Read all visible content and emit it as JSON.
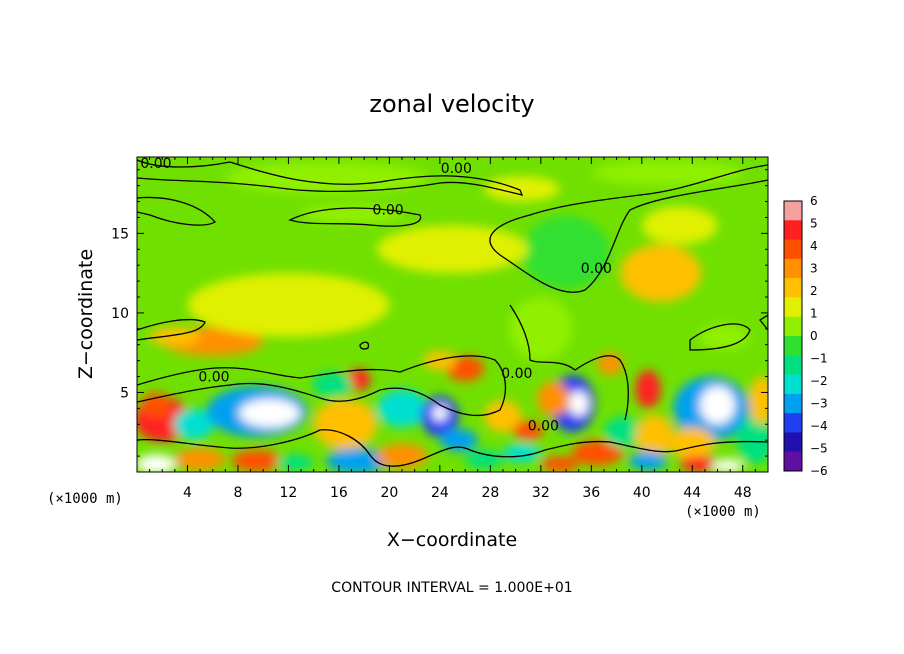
{
  "chart_data": {
    "type": "heatmap",
    "title": "zonal velocity",
    "xlabel": "X−coordinate",
    "ylabel": "Z−coordinate",
    "x_unit_left": "(×1000 m)",
    "x_unit_right": "(×1000 m)",
    "xlim": [
      0,
      50
    ],
    "ylim": [
      0,
      19.8
    ],
    "x_ticks": [
      4,
      8,
      12,
      16,
      20,
      24,
      28,
      32,
      36,
      40,
      44,
      48
    ],
    "y_ticks": [
      5,
      10,
      15
    ],
    "colorbar": {
      "min": -6,
      "max": 6,
      "labels": [
        "6",
        "5",
        "4",
        "3",
        "2",
        "1",
        "0",
        "−1",
        "−2",
        "−3",
        "−4",
        "−5",
        "−6"
      ],
      "colors": [
        "#f4a0a0",
        "#ff2020",
        "#ff5000",
        "#ff9000",
        "#ffc000",
        "#e0f000",
        "#90f000",
        "#30e030",
        "#00e080",
        "#00e0d0",
        "#00a0f0",
        "#2040f0",
        "#2010b0",
        "#6010a0"
      ]
    },
    "contour_labels": [
      {
        "text": "0.00",
        "x": 1.5,
        "y": 19.1
      },
      {
        "text": "0.00",
        "x": 25.3,
        "y": 18.8
      },
      {
        "text": "0.00",
        "x": 19.9,
        "y": 16.2
      },
      {
        "text": "0.00",
        "x": 36.4,
        "y": 12.5
      },
      {
        "text": "0.00",
        "x": 6.1,
        "y": 5.7
      },
      {
        "text": "0.00",
        "x": 30.1,
        "y": 5.9
      },
      {
        "text": "0.00",
        "x": 32.2,
        "y": 2.6
      }
    ],
    "blobs": [
      {
        "x": 2.0,
        "y": 3.3,
        "rx": 2.2,
        "ry": 1.4,
        "v": 4.5
      },
      {
        "x": 1.5,
        "y": 4.2,
        "rx": 1.2,
        "ry": 0.8,
        "v": 3.5
      },
      {
        "x": 4.5,
        "y": 3.0,
        "rx": 1.6,
        "ry": 1.0,
        "v": -3.2
      },
      {
        "x": 1.5,
        "y": 0.5,
        "rx": 1.6,
        "ry": 0.6,
        "v": -6.5
      },
      {
        "x": 5.0,
        "y": 0.8,
        "rx": 2.0,
        "ry": 0.7,
        "v": 2.2
      },
      {
        "x": 9.5,
        "y": 3.8,
        "rx": 4.0,
        "ry": 1.6,
        "v": -4.2
      },
      {
        "x": 10.5,
        "y": 3.7,
        "rx": 2.4,
        "ry": 0.9,
        "v": -6.5
      },
      {
        "x": 9.5,
        "y": 0.7,
        "rx": 2.0,
        "ry": 0.7,
        "v": 3.8
      },
      {
        "x": 12.5,
        "y": 0.6,
        "rx": 1.5,
        "ry": 0.5,
        "v": -2.5
      },
      {
        "x": 6.0,
        "y": 8.2,
        "rx": 4.0,
        "ry": 0.9,
        "v": 3.0
      },
      {
        "x": 8.5,
        "y": 9.2,
        "rx": 1.5,
        "ry": 0.5,
        "v": 2.2
      },
      {
        "x": 3.0,
        "y": 8.5,
        "rx": 2.0,
        "ry": 0.6,
        "v": 1.5
      },
      {
        "x": 16.5,
        "y": 3.0,
        "rx": 2.5,
        "ry": 1.6,
        "v": 1.8
      },
      {
        "x": 17.5,
        "y": 5.8,
        "rx": 1.0,
        "ry": 0.7,
        "v": 4.3
      },
      {
        "x": 15.5,
        "y": 5.5,
        "rx": 1.6,
        "ry": 0.8,
        "v": -2.5
      },
      {
        "x": 17.5,
        "y": 0.7,
        "rx": 2.5,
        "ry": 0.8,
        "v": -4.0
      },
      {
        "x": 21.0,
        "y": 4.0,
        "rx": 2.0,
        "ry": 1.2,
        "v": -3.8
      },
      {
        "x": 24.0,
        "y": 3.5,
        "rx": 1.5,
        "ry": 1.3,
        "v": -5.0
      },
      {
        "x": 24.0,
        "y": 3.7,
        "rx": 0.6,
        "ry": 0.5,
        "v": -6.5
      },
      {
        "x": 25.5,
        "y": 2.0,
        "rx": 1.5,
        "ry": 0.7,
        "v": -4.5
      },
      {
        "x": 26.0,
        "y": 6.5,
        "rx": 1.5,
        "ry": 0.8,
        "v": 3.5
      },
      {
        "x": 24.0,
        "y": 7.0,
        "rx": 1.3,
        "ry": 0.6,
        "v": 1.8
      },
      {
        "x": 21.0,
        "y": 1.0,
        "rx": 2.0,
        "ry": 0.8,
        "v": 2.2
      },
      {
        "x": 27.5,
        "y": 0.8,
        "rx": 1.5,
        "ry": 0.6,
        "v": -2.5
      },
      {
        "x": 29.0,
        "y": 3.5,
        "rx": 1.5,
        "ry": 1.0,
        "v": 1.5
      },
      {
        "x": 31.0,
        "y": 2.6,
        "rx": 1.2,
        "ry": 0.6,
        "v": 3.6
      },
      {
        "x": 30.5,
        "y": 1.2,
        "rx": 1.5,
        "ry": 0.6,
        "v": -3.0
      },
      {
        "x": 33.5,
        "y": 0.5,
        "rx": 1.5,
        "ry": 0.5,
        "v": 3.5
      },
      {
        "x": 34.5,
        "y": 4.3,
        "rx": 1.8,
        "ry": 1.8,
        "v": -5.0
      },
      {
        "x": 35.0,
        "y": 4.3,
        "rx": 0.8,
        "ry": 0.8,
        "v": -6.5
      },
      {
        "x": 33.0,
        "y": 4.6,
        "rx": 1.3,
        "ry": 1.1,
        "v": 2.2
      },
      {
        "x": 36.5,
        "y": 1.2,
        "rx": 2.0,
        "ry": 0.8,
        "v": 3.6
      },
      {
        "x": 37.5,
        "y": 6.8,
        "rx": 1.0,
        "ry": 0.7,
        "v": 2.5
      },
      {
        "x": 40.5,
        "y": 5.2,
        "rx": 1.0,
        "ry": 1.2,
        "v": 4.3
      },
      {
        "x": 38.5,
        "y": 2.5,
        "rx": 1.5,
        "ry": 1.0,
        "v": -2.0
      },
      {
        "x": 41.0,
        "y": 2.3,
        "rx": 1.5,
        "ry": 1.3,
        "v": 1.2
      },
      {
        "x": 40.5,
        "y": 0.7,
        "rx": 1.5,
        "ry": 0.6,
        "v": -4.0
      },
      {
        "x": 45.5,
        "y": 4.0,
        "rx": 3.0,
        "ry": 2.0,
        "v": -4.3
      },
      {
        "x": 46.0,
        "y": 4.2,
        "rx": 1.4,
        "ry": 1.2,
        "v": -6.5
      },
      {
        "x": 44.0,
        "y": 1.8,
        "rx": 1.8,
        "ry": 1.0,
        "v": 2.0
      },
      {
        "x": 44.5,
        "y": 0.5,
        "rx": 1.5,
        "ry": 0.5,
        "v": 4.5
      },
      {
        "x": 46.8,
        "y": 0.4,
        "rx": 1.3,
        "ry": 0.4,
        "v": -6.5
      },
      {
        "x": 49.0,
        "y": 2.0,
        "rx": 1.5,
        "ry": 1.5,
        "v": -2.5
      },
      {
        "x": 49.5,
        "y": 4.5,
        "rx": 1.0,
        "ry": 1.5,
        "v": 1.8
      },
      {
        "x": 46.5,
        "y": 8.5,
        "rx": 2.0,
        "ry": 0.8,
        "v": -0.8
      },
      {
        "x": 34.0,
        "y": 13.8,
        "rx": 3.5,
        "ry": 2.3,
        "v": -1.5
      },
      {
        "x": 41.5,
        "y": 12.5,
        "rx": 3.2,
        "ry": 1.8,
        "v": 1.5
      },
      {
        "x": 43.0,
        "y": 15.5,
        "rx": 3.0,
        "ry": 1.2,
        "v": 0.8
      },
      {
        "x": 30.5,
        "y": 17.8,
        "rx": 3.0,
        "ry": 0.8,
        "v": 0.6
      },
      {
        "x": 12.0,
        "y": 10.5,
        "rx": 8.0,
        "ry": 2.0,
        "v": 0.8
      },
      {
        "x": 32.0,
        "y": 9.0,
        "rx": 2.5,
        "ry": 2.0,
        "v": -0.6
      },
      {
        "x": 15.0,
        "y": 18.5,
        "rx": 8.0,
        "ry": 1.0,
        "v": -0.6
      },
      {
        "x": 42.0,
        "y": 18.8,
        "rx": 6.0,
        "ry": 0.8,
        "v": -0.6
      },
      {
        "x": 17.0,
        "y": 16.2,
        "rx": 4.0,
        "ry": 0.6,
        "v": -0.7
      },
      {
        "x": 25.0,
        "y": 14.0,
        "rx": 6.0,
        "ry": 1.5,
        "v": 0.9
      }
    ],
    "annotation": "CONTOUR INTERVAL = 1.000E+01"
  }
}
